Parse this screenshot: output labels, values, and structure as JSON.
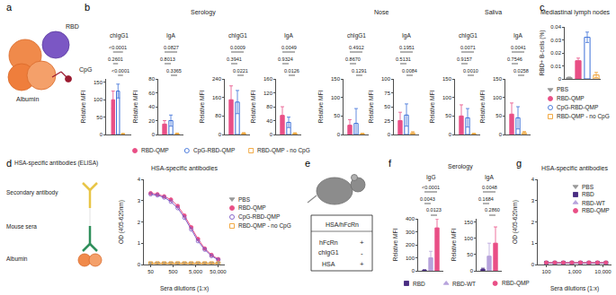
{
  "panel_letters": [
    "a",
    "b",
    "c",
    "d",
    "e",
    "f",
    "g"
  ],
  "diagram_a": {
    "labels": {
      "rbd": "RBD",
      "cpg": "CpG",
      "albumin": "Albumin"
    }
  },
  "diagram_d": {
    "title": "HSA-specific antibodies (ELISA)",
    "labels": {
      "secondary": "Secondary antibody",
      "sera": "Mouse sera",
      "albumin": "Albumin"
    }
  },
  "diagram_e": {
    "title": "HSA/hFcRn",
    "rows": [
      [
        "hFcRn",
        "+"
      ],
      [
        "chIgG1",
        "-"
      ],
      [
        "HSA",
        "+"
      ]
    ]
  },
  "chart_data": [
    {
      "type": "bar",
      "header": "Serology",
      "title": "chIgG1",
      "y_label": "Relative MFI",
      "categories": [
        "RBD-QMP",
        "CpG-RBD-QMP",
        "RBD-QMP - no CpG"
      ],
      "values": [
        100,
        125,
        2
      ],
      "errors": [
        25,
        20,
        1
      ],
      "colors": [
        "#e94f86",
        "#3b6fd8",
        "#f0a030"
      ],
      "ylim": [
        0,
        160
      ],
      "yticks": [
        0,
        50,
        100,
        150
      ],
      "grid": false,
      "tick_labels": "y",
      "comparisons": [
        {
          "groups": [
            0,
            2
          ],
          "p": "<0.0001"
        },
        {
          "groups": [
            0,
            1
          ],
          "p": "0.2601"
        },
        {
          "groups": [
            1,
            2
          ],
          "p": "<0.0001"
        }
      ]
    },
    {
      "type": "bar",
      "title": "IgA",
      "y_label": "Relative MFI",
      "categories": [
        "RBD-QMP",
        "CpG-RBD-QMP",
        "RBD-QMP - no CpG"
      ],
      "values": [
        15,
        20,
        1
      ],
      "errors": [
        5,
        8,
        1
      ],
      "colors": [
        "#e94f86",
        "#3b6fd8",
        "#f0a030"
      ],
      "ylim": [
        0,
        80
      ],
      "yticks": [
        0,
        20,
        40,
        60,
        80
      ],
      "grid": false,
      "tick_labels": "y",
      "comparisons": [
        {
          "groups": [
            0,
            2
          ],
          "p": "0.0827"
        },
        {
          "groups": [
            0,
            1
          ],
          "p": "0.8013"
        },
        {
          "groups": [
            1,
            2
          ],
          "p": "0.3365"
        }
      ]
    },
    {
      "type": "bar",
      "title": "chIgG1",
      "y_label": "Relative MFI",
      "categories": [
        "RBD-QMP",
        "CpG-RBD-QMP",
        "RBD-QMP - no CpG"
      ],
      "values": [
        150,
        140,
        5
      ],
      "errors": [
        60,
        50,
        3
      ],
      "colors": [
        "#e94f86",
        "#3b6fd8",
        "#f0a030"
      ],
      "ylim": [
        0,
        240
      ],
      "yticks": [
        0,
        80,
        160,
        240
      ],
      "grid": false,
      "tick_labels": "y",
      "comparisons": [
        {
          "groups": [
            0,
            2
          ],
          "p": "0.0009"
        },
        {
          "groups": [
            0,
            1
          ],
          "p": "0.3941"
        },
        {
          "groups": [
            1,
            2
          ],
          "p": "0.0221"
        }
      ]
    },
    {
      "type": "bar",
      "title": "IgA",
      "y_label": "Relative MFI",
      "categories": [
        "RBD-QMP",
        "CpG-RBD-QMP",
        "RBD-QMP - no CpG"
      ],
      "values": [
        55,
        35,
        3
      ],
      "errors": [
        25,
        15,
        2
      ],
      "colors": [
        "#e94f86",
        "#3b6fd8",
        "#f0a030"
      ],
      "ylim": [
        0,
        160
      ],
      "yticks": [
        0,
        40,
        80,
        120,
        160
      ],
      "grid": false,
      "tick_labels": "y",
      "comparisons": [
        {
          "groups": [
            0,
            2
          ],
          "p": "0.0049"
        },
        {
          "groups": [
            0,
            1
          ],
          "p": "0.9324"
        },
        {
          "groups": [
            1,
            2
          ],
          "p": "0.0126"
        }
      ]
    },
    {
      "type": "bar",
      "header": "Nose",
      "title": "chIgG1",
      "y_label": "Relative MFI",
      "categories": [
        "RBD-QMP",
        "CpG-RBD-QMP",
        "RBD-QMP - no CpG"
      ],
      "values": [
        25,
        30,
        2
      ],
      "errors": [
        15,
        40,
        1
      ],
      "colors": [
        "#e94f86",
        "#3b6fd8",
        "#f0a030"
      ],
      "ylim": [
        0,
        150
      ],
      "yticks": [
        0,
        50,
        100,
        150
      ],
      "grid": false,
      "tick_labels": "y",
      "comparisons": [
        {
          "groups": [
            0,
            2
          ],
          "p": "0.4912"
        },
        {
          "groups": [
            0,
            1
          ],
          "p": "0.8670"
        },
        {
          "groups": [
            1,
            2
          ],
          "p": "0.1291"
        }
      ]
    },
    {
      "type": "bar",
      "title": "IgA",
      "y_label": "Relative MFI",
      "categories": [
        "RBD-QMP",
        "CpG-RBD-QMP",
        "RBD-QMP - no CpG"
      ],
      "values": [
        25,
        35,
        3
      ],
      "errors": [
        15,
        20,
        2
      ],
      "colors": [
        "#e94f86",
        "#3b6fd8",
        "#f0a030"
      ],
      "ylim": [
        0,
        100
      ],
      "yticks": [
        0,
        25,
        50,
        75,
        100
      ],
      "grid": false,
      "tick_labels": "y",
      "comparisons": [
        {
          "groups": [
            0,
            2
          ],
          "p": "0.1951"
        },
        {
          "groups": [
            0,
            1
          ],
          "p": "0.5131"
        },
        {
          "groups": [
            1,
            2
          ],
          "p": "0.0084"
        }
      ]
    },
    {
      "type": "bar",
      "header": "Saliva",
      "title": "chIgG1",
      "y_label": "Relative MFI",
      "categories": [
        "RBD-QMP",
        "CpG-RBD-QMP",
        "RBD-QMP - no CpG"
      ],
      "values": [
        50,
        45,
        2
      ],
      "errors": [
        30,
        25,
        1
      ],
      "colors": [
        "#e94f86",
        "#3b6fd8",
        "#f0a030"
      ],
      "ylim": [
        0,
        150
      ],
      "yticks": [
        0,
        50,
        100,
        150
      ],
      "grid": false,
      "tick_labels": "y",
      "comparisons": [
        {
          "groups": [
            0,
            2
          ],
          "p": "0.0071"
        },
        {
          "groups": [
            0,
            1
          ],
          "p": "0.9157"
        },
        {
          "groups": [
            1,
            2
          ],
          "p": "0.0010"
        }
      ]
    },
    {
      "type": "bar",
      "title": "IgA",
      "y_label": "Relative MFI",
      "categories": [
        "RBD-QMP",
        "CpG-RBD-QMP",
        "RBD-QMP - no CpG"
      ],
      "values": [
        55,
        45,
        5
      ],
      "errors": [
        30,
        30,
        3
      ],
      "colors": [
        "#e94f86",
        "#3b6fd8",
        "#f0a030"
      ],
      "ylim": [
        0,
        150
      ],
      "yticks": [
        0,
        50,
        100,
        150
      ],
      "grid": false,
      "tick_labels": "y",
      "comparisons": [
        {
          "groups": [
            0,
            2
          ],
          "p": "0.0041"
        },
        {
          "groups": [
            0,
            1
          ],
          "p": "0.7546"
        },
        {
          "groups": [
            1,
            2
          ],
          "p": "0.0258"
        }
      ]
    },
    {
      "type": "bar",
      "header": "Mediastinal lymph nodes",
      "y_label": "RBD+ B-cells (%)",
      "categories": [
        "PBS",
        "RBD-QMP",
        "CpG-RBD-QMP",
        "RBD-QMP - no CpG"
      ],
      "values": [
        0.001,
        0.014,
        0.032,
        0.003
      ],
      "errors": [
        0.0005,
        0.002,
        0.004,
        0.002
      ],
      "colors": [
        "#999999",
        "#e94f86",
        "#3b6fd8",
        "#f0a030"
      ],
      "ylim": [
        0,
        0.04
      ],
      "yticks": [
        0,
        0.01,
        0.02,
        0.03,
        0.04
      ],
      "grid": false,
      "tick_labels": "y"
    },
    {
      "type": "line",
      "header": "HSA-specific antibodies",
      "x_label": "Sera dilutions (1:x)",
      "y_label": "OD (405-620nm)",
      "log": "x",
      "x": [
        50,
        100,
        200,
        400,
        800,
        1600,
        3200,
        6400,
        12800,
        25600,
        51200
      ],
      "xlim": [
        25,
        100000
      ],
      "xticks": [
        50,
        500,
        {
          "value": 5000,
          "label": "5,000"
        },
        {
          "value": 50000,
          "label": "50,000"
        }
      ],
      "ylim": [
        0,
        4
      ],
      "yticks": [
        0,
        1,
        2,
        3,
        4
      ],
      "grid": false,
      "series": [
        {
          "name": "PBS",
          "color": "#999999",
          "marker": "triangle-down",
          "values": [
            0.06,
            0.06,
            0.06,
            0.06,
            0.06,
            0.06,
            0.06,
            0.06,
            0.06,
            0.06,
            0.06
          ]
        },
        {
          "name": "RBD-QMP",
          "color": "#e94f86",
          "marker": "circle",
          "values": [
            3.35,
            3.3,
            3.2,
            3.05,
            2.75,
            2.3,
            1.75,
            1.2,
            0.75,
            0.45,
            0.25
          ]
        },
        {
          "name": "CpG-RBD-QMP",
          "color": "#7b57c4",
          "marker": "circle-open",
          "values": [
            3.3,
            3.25,
            3.15,
            2.95,
            2.65,
            2.2,
            1.65,
            1.1,
            0.7,
            0.4,
            0.22
          ]
        },
        {
          "name": "RBD-QMP - no CpG",
          "color": "#f0a030",
          "marker": "square-open",
          "values": [
            0.05,
            0.05,
            0.05,
            0.05,
            0.05,
            0.05,
            0.05,
            0.05,
            0.05,
            0.05,
            0.05
          ]
        }
      ]
    },
    {
      "type": "bar",
      "header": "Serology",
      "title": "IgG",
      "y_label": "Relative MFI",
      "categories": [
        "RBD",
        "RBD-WT",
        "RBD-QMP"
      ],
      "values": [
        5,
        100,
        330
      ],
      "errors": [
        3,
        50,
        70
      ],
      "colors": [
        "#4a2d82",
        "#b7a3dc",
        "#e94f86"
      ],
      "ylim": [
        0,
        400
      ],
      "yticks": [
        0,
        100,
        200,
        300,
        400
      ],
      "grid": false,
      "tick_labels": "y",
      "comparisons": [
        {
          "groups": [
            0,
            2
          ],
          "p": "<0.0001"
        },
        {
          "groups": [
            0,
            1
          ],
          "p": "0.0043"
        },
        {
          "groups": [
            1,
            2
          ],
          "p": "0.0123"
        }
      ]
    },
    {
      "type": "bar",
      "title": "IgA",
      "y_label": "Relative MFI",
      "categories": [
        "RBD",
        "RBD-WT",
        "RBD-QMP"
      ],
      "values": [
        5,
        45,
        85
      ],
      "errors": [
        3,
        40,
        50
      ],
      "colors": [
        "#4a2d82",
        "#b7a3dc",
        "#e94f86"
      ],
      "ylim": [
        0,
        160
      ],
      "yticks": [
        0,
        50,
        100,
        150
      ],
      "grid": false,
      "tick_labels": "y",
      "comparisons": [
        {
          "groups": [
            0,
            2
          ],
          "p": "0.0048"
        },
        {
          "groups": [
            0,
            1
          ],
          "p": "0.1684"
        },
        {
          "groups": [
            1,
            2
          ],
          "p": "0.2860"
        }
      ]
    },
    {
      "type": "line",
      "header": "HSA-specific antibodies",
      "x_label": "Sera dilutions (1:x)",
      "y_label": "OD (405-620nm)",
      "log": "x",
      "x": [
        100,
        200,
        400,
        800,
        1600,
        3200,
        6400,
        12800
      ],
      "xlim": [
        50,
        20000
      ],
      "xticks": [
        100,
        {
          "value": 1000,
          "label": "1,000"
        },
        {
          "value": 10000,
          "label": "10,000"
        }
      ],
      "ylim": [
        0,
        4
      ],
      "yticks": [
        0,
        1,
        2,
        3,
        4
      ],
      "grid": false,
      "series": [
        {
          "name": "PBS",
          "color": "#999999",
          "marker": "triangle-down",
          "values": [
            0.06,
            0.06,
            0.06,
            0.06,
            0.06,
            0.06,
            0.06,
            0.06
          ]
        },
        {
          "name": "RBD",
          "color": "#4a2d82",
          "marker": "square",
          "values": [
            0.07,
            0.07,
            0.07,
            0.07,
            0.07,
            0.07,
            0.07,
            0.07
          ]
        },
        {
          "name": "RBD-WT",
          "color": "#b7a3dc",
          "marker": "triangle-up",
          "values": [
            0.08,
            0.08,
            0.08,
            0.08,
            0.08,
            0.08,
            0.08,
            0.08
          ]
        },
        {
          "name": "RBD-QMP",
          "color": "#e94f86",
          "marker": "circle",
          "values": [
            0.09,
            0.09,
            0.09,
            0.09,
            0.09,
            0.09,
            0.09,
            0.09
          ]
        }
      ]
    }
  ]
}
